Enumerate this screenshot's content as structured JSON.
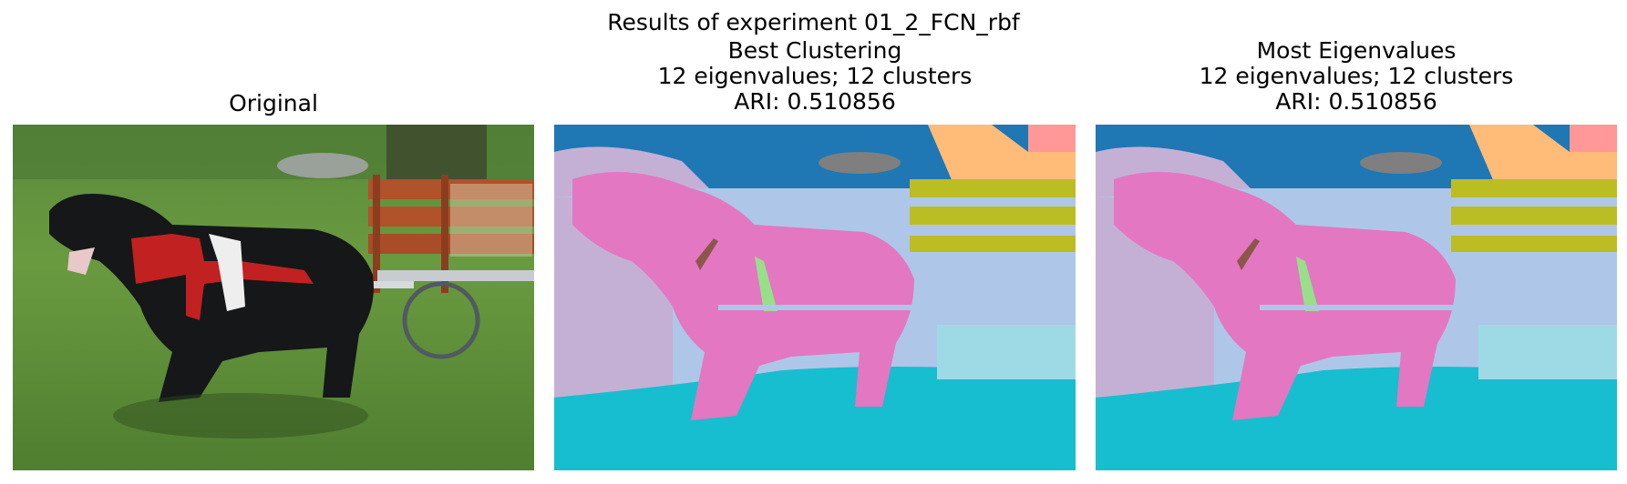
{
  "figure": {
    "suptitle": "Results of experiment 01_2_FCN_rbf"
  },
  "panels": [
    {
      "id": "original",
      "title_lines": [
        "Original"
      ],
      "image": "photo of a black dog harnessed to a wooden cart on grass"
    },
    {
      "id": "best-clustering",
      "title_lines": [
        "Best Clustering",
        "12 eigenvalues; 12 clusters",
        "ARI: 0.510856"
      ],
      "image": "segmentation map"
    },
    {
      "id": "most-eigenvalues",
      "title_lines": [
        "Most Eigenvalues",
        "12 eigenvalues; 12 clusters",
        "ARI: 0.510856"
      ],
      "image": "segmentation map"
    }
  ],
  "colors": {
    "pink": "#e377c2",
    "blue": "#1f77b4",
    "light_blue": "#aec7e8",
    "cyan": "#17becf",
    "light_cyan": "#9edae5",
    "olive": "#bcbd22",
    "orange_light": "#ffbb78",
    "salmon": "#ff9896",
    "gray": "#7f7f7f",
    "brown": "#8c564b",
    "light_green": "#98df8a",
    "lilac": "#c5b0d5"
  }
}
